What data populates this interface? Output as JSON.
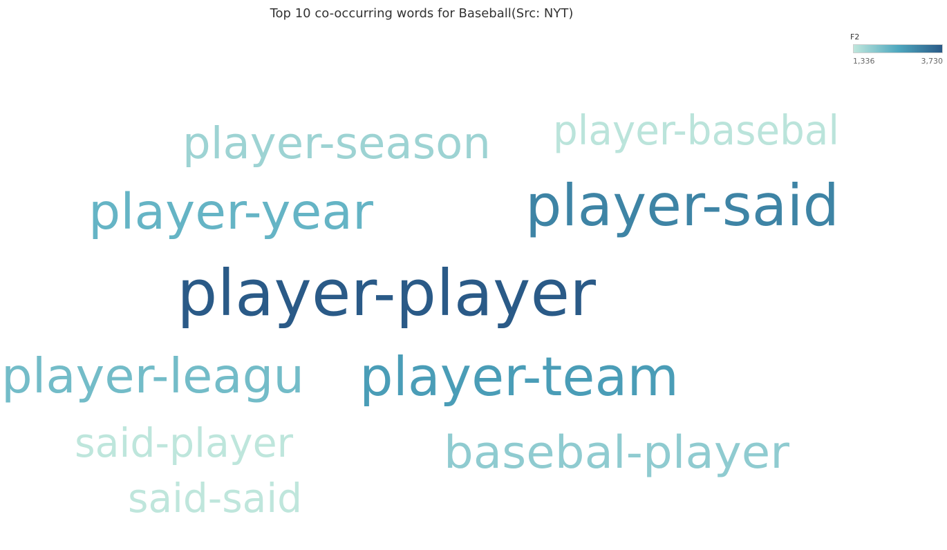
{
  "chart_data": {
    "type": "word-cloud",
    "title": "Top 10 co-occurring words for Baseball(Src: NYT)",
    "legend": {
      "field": "F2",
      "min": 1336,
      "max": 3730,
      "min_label": "1,336",
      "max_label": "3,730",
      "color_low": "#bfe6dc",
      "color_mid": "#4fa8bf",
      "color_high": "#2a5a87"
    },
    "words": [
      {
        "text": "player-player",
        "value": 3730
      },
      {
        "text": "player-said",
        "value": 3080
      },
      {
        "text": "player-team",
        "value": 2700
      },
      {
        "text": "player-year",
        "value": 2300
      },
      {
        "text": "player-leagu",
        "value": 2150
      },
      {
        "text": "basebal-player",
        "value": 1850
      },
      {
        "text": "player-season",
        "value": 1700
      },
      {
        "text": "player-basebal",
        "value": 1380
      },
      {
        "text": "said-player",
        "value": 1345
      },
      {
        "text": "said-said",
        "value": 1336
      }
    ]
  }
}
